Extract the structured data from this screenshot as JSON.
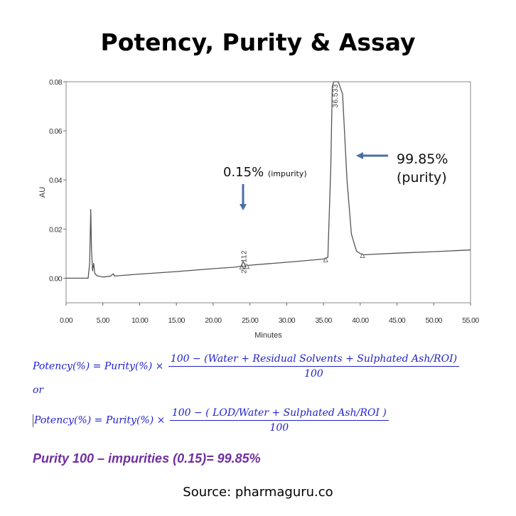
{
  "title": "Potency, Purity & Assay",
  "chart_data": {
    "type": "line",
    "xlabel": "Minutes",
    "ylabel": "AU",
    "xlim": [
      0,
      55
    ],
    "ylim": [
      -0.01,
      0.08
    ],
    "x_ticks": [
      "0.00",
      "5.00",
      "10.00",
      "15.00",
      "20.00",
      "25.00",
      "30.00",
      "35.00",
      "40.00",
      "45.00",
      "50.00",
      "55.00"
    ],
    "y_ticks": [
      "0.00",
      "0.02",
      "0.04",
      "0.06",
      "0.08"
    ],
    "series": [
      {
        "x": [
          0,
          1,
          2,
          3,
          3.2,
          3.35,
          3.45,
          3.6,
          3.75,
          3.9,
          4.2,
          5,
          6,
          6.4,
          6.6,
          7,
          10,
          15,
          20,
          23,
          23.8,
          24.1,
          24.4,
          25,
          30,
          35,
          35.6,
          36.0,
          36.2,
          36.4,
          37.0,
          37.6,
          38.2,
          38.8,
          39.5,
          40.3,
          42,
          45,
          50,
          55
        ],
        "y": [
          0,
          0,
          0,
          0,
          0.006,
          0.028,
          0.012,
          0.003,
          0.006,
          0.002,
          0.001,
          0.0005,
          0.0008,
          0.0018,
          0.0009,
          0.001,
          0.0017,
          0.0027,
          0.0039,
          0.0045,
          0.0049,
          0.0068,
          0.005,
          0.0053,
          0.0065,
          0.0078,
          0.0085,
          0.045,
          0.078,
          0.08,
          0.08,
          0.075,
          0.04,
          0.018,
          0.011,
          0.0095,
          0.0098,
          0.0102,
          0.0108,
          0.0115
        ]
      }
    ],
    "peak_labels": [
      {
        "text": "24.112",
        "x": 24.112,
        "y": 0.0068
      },
      {
        "text": "36.533",
        "x": 36.533,
        "y": 0.08
      }
    ],
    "integration_marks": [
      {
        "x": 23.9,
        "y": 0.0049
      },
      {
        "x": 24.6,
        "y": 0.0051
      },
      {
        "x": 35.3,
        "y": 0.0078
      },
      {
        "x": 40.3,
        "y": 0.0095
      }
    ],
    "annotations": {
      "impurity_value": "0.15%",
      "impurity_note": "(impurity)",
      "purity_value": "99.85%",
      "purity_note": "(purity)"
    },
    "colors": {
      "trace": "#555555",
      "arrow": "#4a6fa5"
    }
  },
  "formulas": {
    "f1": {
      "lhs": "Potency(%) = Purity(%) ×",
      "numerator": "100 − (Water + Residual  Solvents + Sulphated  Ash/ROI)",
      "denominator": "100"
    },
    "or": "or",
    "f2": {
      "lhs": "Potency(%) = Purity(%) ×",
      "numerator": "100 − ( LOD/Water + Sulphated  Ash/ROI )",
      "denominator": "100"
    },
    "color": "#2222cc"
  },
  "purity_line": "Purity 100 – impurities (0.15)= 99.85%",
  "purity_color": "#7030a0",
  "source": "Source: pharmaguru.co"
}
